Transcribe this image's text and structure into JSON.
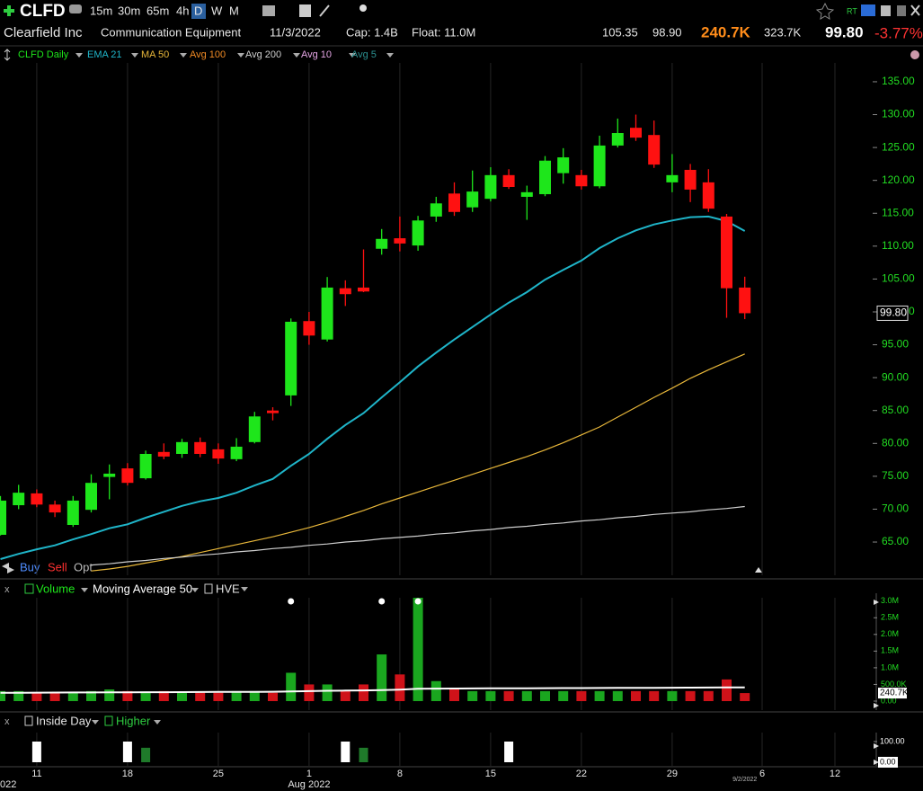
{
  "toolbar": {
    "symbol": "CLFD",
    "timeframes": [
      "15m",
      "30m",
      "65m",
      "4h",
      "D",
      "W",
      "M"
    ],
    "rt": "RT"
  },
  "header": {
    "company": "Clearfield Inc",
    "industry": "Communication Equipment",
    "date": "11/3/2022",
    "cap": "Cap: 1.4B",
    "float": "Float: 11.0M",
    "stats": [
      "105.35",
      "98.90",
      "240.7K",
      "323.7K"
    ],
    "last": "99.80",
    "change": "-3.77%"
  },
  "trade_buttons": [
    "Buy",
    "Sell",
    "Opt"
  ],
  "x_axis": {
    "extra_labels": [
      "6",
      "12"
    ],
    "month_label": "Aug 2022",
    "edge_label": "022",
    "cursor_label": "9/2/2022"
  },
  "chart_data": [
    {
      "type": "candlestick",
      "title": "CLFD Daily",
      "up_color": "#1ee61b",
      "down_color": "#ff1111",
      "categories": [
        null,
        null,
        "11",
        null,
        null,
        null,
        null,
        "18",
        null,
        null,
        null,
        null,
        "25",
        null,
        null,
        null,
        null,
        "1",
        null,
        null,
        null,
        null,
        "8",
        null,
        null,
        null,
        null,
        "15",
        null,
        null,
        null,
        null,
        "22",
        null,
        null,
        null,
        null,
        "29",
        null,
        null,
        null,
        null
      ],
      "open": [
        66.1,
        70.6,
        72.4,
        70.7,
        67.6,
        69.9,
        74.9,
        76.2,
        74.7,
        78.7,
        78.4,
        80.2,
        79.1,
        77.6,
        80.2,
        85,
        87.3,
        98.6,
        95.8,
        103.6,
        103.7,
        109.6,
        111.2,
        110.1,
        114.5,
        118,
        115.9,
        117.2,
        120.8,
        117.5,
        117.9,
        121.1,
        120.8,
        119.1,
        125.3,
        128,
        126.9,
        119.7,
        121.6,
        119.7,
        114.5,
        103.7
      ],
      "high": [
        72,
        73.7,
        73,
        71.3,
        72,
        75.3,
        76.8,
        77,
        78.9,
        80,
        80.7,
        80.9,
        80,
        80.8,
        84.8,
        85.5,
        99,
        100,
        105.3,
        104.8,
        109.5,
        112.6,
        114.5,
        114.6,
        117.5,
        119.7,
        121.5,
        122,
        121.7,
        119.2,
        123.7,
        124.9,
        121.6,
        126.8,
        129.4,
        130,
        129.1,
        124,
        122.5,
        121.7,
        114.9,
        105.35
      ],
      "low": [
        66,
        70,
        70.3,
        68.8,
        67.3,
        69.5,
        71.5,
        73.6,
        74.5,
        77.6,
        77.8,
        77.9,
        76.9,
        77.3,
        80,
        83.5,
        85.7,
        95,
        95.5,
        100.9,
        103,
        108.7,
        109.2,
        109.3,
        113.7,
        114.6,
        115.2,
        116.8,
        118.7,
        114,
        117.6,
        119.5,
        118.6,
        118.8,
        125,
        126,
        121.9,
        118.2,
        116.7,
        115.2,
        99.1,
        98.9
      ],
      "close": [
        71.3,
        72.5,
        70.7,
        69.5,
        71.3,
        74,
        75.4,
        74,
        78.4,
        78,
        80.2,
        78.4,
        77.7,
        79.5,
        84.1,
        84.6,
        98.5,
        96.4,
        103.7,
        102.7,
        103.1,
        111.1,
        110.4,
        113.9,
        116.5,
        115.2,
        118.3,
        120.8,
        119,
        118.2,
        123,
        123.5,
        119.1,
        125.3,
        127.2,
        126.5,
        122.4,
        120.8,
        118.6,
        115.7,
        103.6,
        99.8
      ],
      "series": [
        {
          "name": "EMA 21",
          "color": "#1fb5c9",
          "values": [
            62.4,
            63.2,
            63.9,
            64.5,
            65.4,
            66.2,
            67.1,
            67.7,
            68.7,
            69.6,
            70.5,
            71.2,
            71.7,
            72.5,
            73.6,
            74.6,
            76.6,
            78.4,
            80.7,
            82.8,
            84.6,
            87,
            89.3,
            91.7,
            93.8,
            95.8,
            97.7,
            99.6,
            101.4,
            103,
            104.9,
            106.4,
            107.8,
            109.7,
            111.2,
            112.4,
            113.3,
            113.9,
            114.4,
            114.5,
            113.8,
            112.3
          ]
        },
        {
          "name": "MA 50",
          "color": "#e8b73a",
          "values": [
            null,
            null,
            null,
            null,
            null,
            60.6,
            60.9,
            61.3,
            61.8,
            62.3,
            62.8,
            63.4,
            64,
            64.6,
            65.2,
            65.8,
            66.5,
            67.2,
            68,
            68.9,
            69.8,
            70.8,
            71.7,
            72.6,
            73.5,
            74.4,
            75.3,
            76.2,
            77.1,
            78,
            79,
            80.1,
            81.3,
            82.5,
            84,
            85.5,
            87,
            88.4,
            89.9,
            91.2,
            92.4,
            93.6
          ]
        },
        {
          "name": "Avg 100",
          "color": "#f08a24"
        },
        {
          "name": "Avg 200",
          "color": "#cfcfcf",
          "values": [
            null,
            null,
            null,
            null,
            null,
            61.5,
            61.7,
            62,
            62.2,
            62.5,
            62.7,
            63,
            63.2,
            63.5,
            63.7,
            64,
            64.2,
            64.5,
            64.7,
            65,
            65.2,
            65.5,
            65.7,
            65.9,
            66.2,
            66.4,
            66.7,
            66.9,
            67.2,
            67.4,
            67.7,
            67.9,
            68.2,
            68.4,
            68.7,
            68.9,
            69.2,
            69.4,
            69.6,
            69.9,
            70.1,
            70.4
          ]
        },
        {
          "name": "Avg 10",
          "color": "#e6a6e6"
        },
        {
          "name": "Avg 5",
          "color": "#2b8f8f"
        }
      ],
      "ylim": [
        60,
        138
      ],
      "yticks": [
        {
          "value": 135,
          "label": "135.00"
        },
        {
          "value": 130,
          "label": "130.00"
        },
        {
          "value": 125,
          "label": "125.00"
        },
        {
          "value": 120,
          "label": "120.00"
        },
        {
          "value": 115,
          "label": "115.00"
        },
        {
          "value": 110,
          "label": "110.00"
        },
        {
          "value": 105,
          "label": "105.00"
        },
        {
          "value": 100,
          "label": "100.00"
        },
        {
          "value": 95,
          "label": "95.00"
        },
        {
          "value": 90,
          "label": "90.00"
        },
        {
          "value": 85,
          "label": "85.00"
        },
        {
          "value": 80,
          "label": "80.00"
        },
        {
          "value": 75,
          "label": "75.00"
        },
        {
          "value": 70,
          "label": "70.00"
        },
        {
          "value": 65,
          "label": "65.00"
        }
      ],
      "x_grid": true
    },
    {
      "type": "bar",
      "indicator": "HVE",
      "up_color": "#1aa61f",
      "down_color": "#cf1219",
      "series": [
        {
          "name": "Volume",
          "color": "#1ee61b",
          "values": [
            300000,
            300000,
            250000,
            250000,
            250000,
            300000,
            350000,
            300000,
            250000,
            300000,
            250000,
            250000,
            250000,
            300000,
            300000,
            250000,
            850000,
            500000,
            500000,
            300000,
            500000,
            1400000,
            800000,
            3100000,
            600000,
            350000,
            300000,
            300000,
            300000,
            300000,
            300000,
            300000,
            300000,
            300000,
            300000,
            300000,
            300000,
            300000,
            300000,
            300000,
            650000,
            240700
          ]
        },
        {
          "name": "Moving Average 50",
          "color": "#ffffff",
          "values": [
            250000,
            252000,
            254000,
            256000,
            258000,
            260000,
            262000,
            264000,
            266000,
            268000,
            270000,
            272000,
            274000,
            276000,
            278000,
            280000,
            290000,
            300000,
            310000,
            315000,
            320000,
            330000,
            345000,
            370000,
            375000,
            378000,
            380000,
            382000,
            384000,
            386000,
            388000,
            390000,
            392000,
            394000,
            396000,
            398000,
            400000,
            402000,
            404000,
            406000,
            410000,
            410000
          ]
        }
      ],
      "ylim": [
        0,
        3100000
      ],
      "yticks": [
        {
          "value": 3000000,
          "label": "3.0M"
        },
        {
          "value": 2500000,
          "label": "2.5M"
        },
        {
          "value": 2000000,
          "label": "2.0M"
        },
        {
          "value": 1500000,
          "label": "1.5M"
        },
        {
          "value": 1000000,
          "label": "1.0M"
        },
        {
          "value": 500000,
          "label": "500.0K"
        },
        {
          "value": 0,
          "label": "0.00"
        }
      ]
    },
    {
      "type": "bar",
      "series": [
        {
          "name": "Inside Day",
          "color": "#ffffff",
          "values": [
            null,
            null,
            100,
            null,
            null,
            null,
            null,
            100,
            null,
            null,
            null,
            null,
            null,
            null,
            null,
            null,
            null,
            null,
            null,
            100,
            null,
            null,
            null,
            null,
            null,
            null,
            null,
            null,
            100,
            null,
            null,
            null,
            null,
            null,
            null,
            null,
            null,
            null,
            null,
            null,
            null,
            null
          ]
        },
        {
          "name": "Higher",
          "color": "#1f7a2a",
          "values": [
            null,
            null,
            null,
            null,
            null,
            null,
            null,
            null,
            70,
            null,
            null,
            null,
            null,
            null,
            null,
            null,
            null,
            null,
            null,
            null,
            70,
            null,
            null,
            null,
            null,
            null,
            null,
            null,
            null,
            null,
            null,
            null,
            null,
            null,
            null,
            null,
            null,
            null,
            null,
            null,
            null,
            null
          ]
        }
      ],
      "ylim": [
        0,
        100
      ],
      "yticks": [
        {
          "value": 100,
          "label": "100.00"
        },
        {
          "value": 0,
          "label": "0.00"
        }
      ]
    }
  ]
}
